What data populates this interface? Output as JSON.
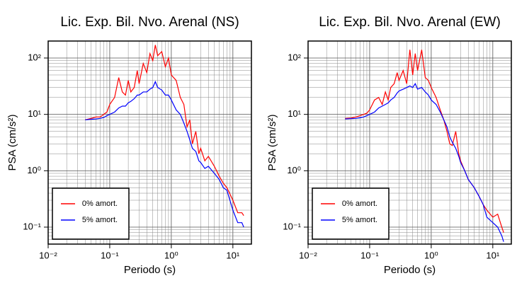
{
  "chart_data": [
    {
      "type": "line",
      "title": "Lic. Exp. Bil. Nvo. Arenal (NS)",
      "x_label": "Periodo (s)",
      "y_label": "PSA (cm/s²)",
      "x": [
        0.04,
        0.05,
        0.06,
        0.07,
        0.08,
        0.09,
        0.1,
        0.12,
        0.14,
        0.16,
        0.18,
        0.2,
        0.22,
        0.25,
        0.28,
        0.3,
        0.35,
        0.4,
        0.45,
        0.5,
        0.55,
        0.6,
        0.7,
        0.8,
        0.9,
        1,
        1.2,
        1.4,
        1.6,
        1.8,
        2,
        2.2,
        2.5,
        2.8,
        3,
        3.5,
        4,
        5,
        6,
        7,
        8,
        10,
        12,
        14,
        15
      ],
      "series": [
        {
          "name": "0% amort.",
          "color": "#ff0000",
          "values": [
            8,
            8.5,
            9,
            9,
            10,
            11,
            15,
            20,
            45,
            25,
            22,
            40,
            25,
            30,
            60,
            35,
            80,
            55,
            120,
            90,
            170,
            110,
            130,
            70,
            100,
            50,
            40,
            20,
            15,
            6,
            8,
            3,
            5,
            2,
            2.5,
            1.5,
            1.8,
            1.2,
            0.8,
            0.6,
            0.5,
            0.3,
            0.18,
            0.18,
            0.16
          ]
        },
        {
          "name": "5% amort.",
          "color": "#0000ff",
          "values": [
            8,
            8.2,
            8.3,
            8.5,
            8.8,
            9.5,
            10,
            11,
            13,
            14,
            14,
            16,
            17,
            19,
            22,
            22,
            25,
            25,
            28,
            30,
            38,
            30,
            27,
            22,
            22,
            18,
            12,
            10,
            7,
            5,
            3.5,
            2.5,
            2.2,
            1.5,
            1.4,
            1.1,
            1.2,
            0.9,
            0.7,
            0.5,
            0.45,
            0.2,
            0.12,
            0.12,
            0.1
          ]
        }
      ],
      "xlog": true,
      "ylog": true,
      "xlim": [
        0.01,
        20
      ],
      "ylim": [
        0.05,
        200
      ],
      "xticks": [
        {
          "value": 0.01,
          "label": "10⁻²"
        },
        {
          "value": 0.1,
          "label": "10⁻¹"
        },
        {
          "value": 1,
          "label": "10⁰"
        },
        {
          "value": 10,
          "label": "10¹"
        }
      ],
      "yticks": [
        {
          "value": 0.1,
          "label": "10⁻¹"
        },
        {
          "value": 1,
          "label": "10⁰"
        },
        {
          "value": 10,
          "label": "10¹"
        },
        {
          "value": 100,
          "label": "10²"
        }
      ],
      "grid": true,
      "legend": "lower left"
    },
    {
      "type": "line",
      "title": "Lic. Exp. Bil. Nvo. Arenal (EW)",
      "x_label": "Periodo (s)",
      "y_label": "PSA (cm/s²)",
      "x": [
        0.04,
        0.05,
        0.06,
        0.07,
        0.08,
        0.09,
        0.1,
        0.12,
        0.14,
        0.16,
        0.18,
        0.2,
        0.22,
        0.25,
        0.28,
        0.3,
        0.35,
        0.4,
        0.45,
        0.5,
        0.55,
        0.6,
        0.7,
        0.8,
        0.9,
        1,
        1.2,
        1.4,
        1.6,
        1.8,
        2,
        2.2,
        2.5,
        2.8,
        3,
        3.5,
        4,
        5,
        6,
        7,
        8,
        10,
        12,
        14,
        15
      ],
      "series": [
        {
          "name": "0% amort.",
          "color": "#ff0000",
          "values": [
            8.5,
            8.6,
            9,
            9.5,
            10,
            10.5,
            12,
            18,
            20,
            15,
            25,
            18,
            30,
            35,
            55,
            40,
            60,
            35,
            140,
            50,
            120,
            60,
            140,
            45,
            40,
            30,
            20,
            12,
            8,
            5,
            3,
            2.8,
            5,
            2,
            1.5,
            1,
            0.7,
            0.5,
            0.35,
            0.25,
            0.2,
            0.15,
            0.17,
            0.1,
            0.08
          ]
        },
        {
          "name": "5% amort.",
          "color": "#0000ff",
          "values": [
            8.3,
            8.4,
            8.5,
            8.7,
            9,
            9.5,
            10,
            11,
            13,
            14,
            15,
            16,
            18,
            20,
            24,
            26,
            28,
            30,
            32,
            30,
            35,
            28,
            30,
            25,
            22,
            18,
            15,
            11,
            8,
            6,
            4,
            3.2,
            2.5,
            1.8,
            1.4,
            1,
            0.7,
            0.5,
            0.35,
            0.25,
            0.15,
            0.12,
            0.1,
            0.07,
            0.055
          ]
        }
      ],
      "xlog": true,
      "ylog": true,
      "xlim": [
        0.01,
        20
      ],
      "ylim": [
        0.05,
        200
      ],
      "xticks": [
        {
          "value": 0.01,
          "label": "10⁻²"
        },
        {
          "value": 0.1,
          "label": "10⁻¹"
        },
        {
          "value": 1,
          "label": "10⁰"
        },
        {
          "value": 10,
          "label": "10¹"
        }
      ],
      "yticks": [
        {
          "value": 0.1,
          "label": "10⁻¹"
        },
        {
          "value": 1,
          "label": "10⁰"
        },
        {
          "value": 10,
          "label": "10¹"
        },
        {
          "value": 100,
          "label": "10²"
        }
      ],
      "grid": true,
      "legend": "lower left"
    }
  ]
}
